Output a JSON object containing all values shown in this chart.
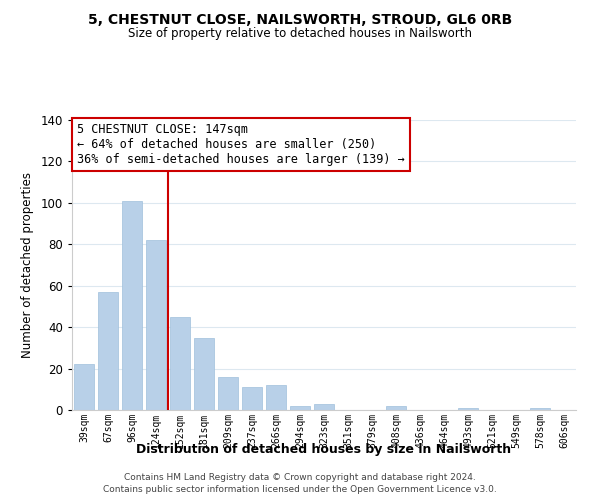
{
  "title": "5, CHESTNUT CLOSE, NAILSWORTH, STROUD, GL6 0RB",
  "subtitle": "Size of property relative to detached houses in Nailsworth",
  "xlabel": "Distribution of detached houses by size in Nailsworth",
  "ylabel": "Number of detached properties",
  "bar_labels": [
    "39sqm",
    "67sqm",
    "96sqm",
    "124sqm",
    "152sqm",
    "181sqm",
    "209sqm",
    "237sqm",
    "266sqm",
    "294sqm",
    "323sqm",
    "351sqm",
    "379sqm",
    "408sqm",
    "436sqm",
    "464sqm",
    "493sqm",
    "521sqm",
    "549sqm",
    "578sqm",
    "606sqm"
  ],
  "bar_values": [
    22,
    57,
    101,
    82,
    45,
    35,
    16,
    11,
    12,
    2,
    3,
    0,
    0,
    2,
    0,
    0,
    1,
    0,
    0,
    1,
    0
  ],
  "bar_color": "#b8d0e8",
  "bar_edge_color": "#a0c0dc",
  "vline_index": 4,
  "vline_color": "#cc0000",
  "ylim": [
    0,
    140
  ],
  "yticks": [
    0,
    20,
    40,
    60,
    80,
    100,
    120,
    140
  ],
  "annotation_title": "5 CHESTNUT CLOSE: 147sqm",
  "annotation_line1": "← 64% of detached houses are smaller (250)",
  "annotation_line2": "36% of semi-detached houses are larger (139) →",
  "annotation_box_color": "#ffffff",
  "annotation_box_edge": "#cc0000",
  "footer_line1": "Contains HM Land Registry data © Crown copyright and database right 2024.",
  "footer_line2": "Contains public sector information licensed under the Open Government Licence v3.0.",
  "background_color": "#ffffff",
  "grid_color": "#dde8f0"
}
